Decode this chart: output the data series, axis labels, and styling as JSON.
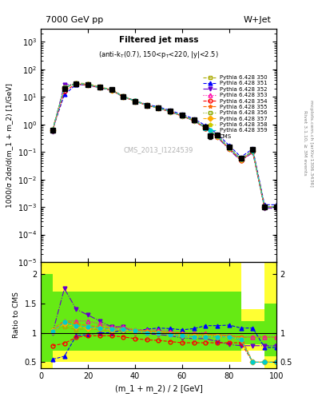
{
  "title_left": "7000 GeV pp",
  "title_right": "W+Jet",
  "plot_title": "Filtered jet mass",
  "plot_subtitle": "(anti-k_{T}(0.7), 150<p_{T}<220, |y|<2.5)",
  "watermark": "CMS_2013_I1224539",
  "rivet_label": "Rivet 3.1.10, ≥ 3M events",
  "mcplots_label": "mcplots.cern.ch [arXiv:1306.3436]",
  "xlabel": "(m_1 + m_2) / 2 [GeV]",
  "ylabel_main": "1000/σ 2dσ/d(m_1 + m_2) [1/GeV]",
  "ylabel_ratio": "Ratio to CMS",
  "xlim": [
    0,
    100
  ],
  "ylim_main": [
    1e-05,
    3000
  ],
  "ylim_ratio": [
    0.4,
    2.2
  ],
  "x_data": [
    5,
    10,
    15,
    20,
    25,
    30,
    35,
    40,
    45,
    50,
    55,
    60,
    65,
    70,
    75,
    80,
    85,
    90,
    95,
    100
  ],
  "cms_x": [
    5,
    10,
    15,
    20,
    25,
    30,
    35,
    40,
    45,
    50,
    55,
    60,
    65,
    70,
    75,
    80,
    85,
    90,
    95,
    100
  ],
  "cms_y": [
    0.6,
    20,
    30,
    28,
    22,
    18,
    10,
    7,
    5,
    4,
    3,
    2.2,
    1.5,
    0.8,
    0.4,
    0.15,
    0.06,
    0.12,
    0.001,
    0.001
  ],
  "cms_yerr": [
    0.1,
    2,
    3,
    2.5,
    2,
    1.5,
    0.8,
    0.6,
    0.4,
    0.3,
    0.25,
    0.18,
    0.12,
    0.07,
    0.04,
    0.015,
    0.008,
    0.02,
    0.0002,
    0.0002
  ],
  "series": [
    {
      "label": "Pythia 6.428 350",
      "color": "#aaaa00",
      "linestyle": "--",
      "marker": "s",
      "markerfacecolor": "none",
      "y": [
        0.65,
        22,
        32,
        30,
        23,
        18.5,
        10.5,
        7.2,
        5.1,
        4.0,
        3.0,
        2.1,
        1.45,
        0.78,
        0.38,
        0.14,
        0.055,
        0.11,
        0.001,
        0.001
      ],
      "ratio": [
        1.05,
        1.1,
        1.05,
        1.07,
        1.05,
        1.03,
        1.05,
        1.03,
        1.02,
        1.0,
        1.0,
        0.95,
        0.97,
        0.97,
        0.95,
        0.93,
        0.92,
        0.92,
        0.92,
        0.92
      ]
    },
    {
      "label": "Pythia 6.428 351",
      "color": "#0000ff",
      "linestyle": "--",
      "marker": "^",
      "markerfacecolor": "#0000ff",
      "y": [
        0.65,
        12,
        28,
        27,
        22,
        18,
        10.5,
        7.2,
        5.3,
        4.3,
        3.2,
        2.3,
        1.6,
        0.9,
        0.45,
        0.17,
        0.065,
        0.13,
        0.0012,
        0.0012
      ],
      "ratio": [
        0.55,
        0.6,
        0.95,
        0.97,
        1.0,
        1.0,
        1.05,
        1.03,
        1.06,
        1.08,
        1.07,
        1.05,
        1.07,
        1.12,
        1.12,
        1.13,
        1.08,
        1.08,
        0.75,
        0.75
      ]
    },
    {
      "label": "Pythia 6.428 352",
      "color": "#6600cc",
      "linestyle": "-.",
      "marker": "v",
      "markerfacecolor": "#6600cc",
      "y": [
        0.55,
        28,
        28,
        27,
        21,
        17,
        10,
        7.0,
        4.9,
        3.9,
        2.85,
        2.0,
        1.35,
        0.72,
        0.34,
        0.12,
        0.047,
        0.095,
        0.0009,
        0.0009
      ],
      "ratio": [
        1.0,
        1.75,
        1.4,
        1.3,
        1.2,
        1.1,
        1.1,
        1.0,
        0.98,
        0.97,
        0.95,
        0.91,
        0.9,
        0.9,
        0.85,
        0.8,
        0.78,
        0.78,
        0.78,
        0.78
      ]
    },
    {
      "label": "Pythia 6.428 353",
      "color": "#ff00aa",
      "linestyle": ":",
      "marker": "^",
      "markerfacecolor": "none",
      "y": [
        0.63,
        22,
        30,
        28,
        22,
        18,
        10.2,
        7.0,
        5.0,
        3.95,
        2.95,
        2.05,
        1.4,
        0.76,
        0.37,
        0.135,
        0.053,
        0.105,
        0.001,
        0.001
      ],
      "ratio": [
        1.05,
        1.2,
        1.2,
        1.2,
        1.15,
        1.1,
        1.1,
        1.05,
        1.05,
        1.05,
        1.02,
        1.0,
        1.0,
        1.0,
        0.97,
        0.95,
        0.93,
        0.93,
        0.93,
        0.93
      ]
    },
    {
      "label": "Pythia 6.428 354",
      "color": "#ff0000",
      "linestyle": "--",
      "marker": "o",
      "markerfacecolor": "none",
      "y": [
        0.6,
        16,
        29,
        27,
        22,
        17.5,
        10,
        6.9,
        4.9,
        3.85,
        2.85,
        2.0,
        1.35,
        0.72,
        0.35,
        0.13,
        0.05,
        0.1,
        0.001,
        0.001
      ],
      "ratio": [
        0.78,
        0.82,
        0.92,
        0.95,
        0.95,
        0.95,
        0.93,
        0.9,
        0.88,
        0.87,
        0.85,
        0.83,
        0.83,
        0.83,
        0.83,
        0.83,
        0.83,
        0.5,
        0.5,
        0.5
      ]
    },
    {
      "label": "Pythia 6.428 355",
      "color": "#ff6600",
      "linestyle": "--",
      "marker": "*",
      "markerfacecolor": "#ff6600",
      "y": [
        0.65,
        21,
        31,
        29,
        22,
        18,
        10.3,
        7.1,
        5.0,
        4.0,
        2.95,
        2.08,
        1.42,
        0.77,
        0.38,
        0.14,
        0.055,
        0.11,
        0.001,
        0.001
      ],
      "ratio": [
        1.05,
        1.2,
        1.15,
        1.12,
        1.1,
        1.08,
        1.07,
        1.05,
        1.03,
        1.02,
        1.0,
        1.0,
        0.98,
        0.98,
        0.97,
        0.95,
        0.93,
        0.5,
        0.5,
        0.5
      ]
    },
    {
      "label": "Pythia 6.428 356",
      "color": "#88aa00",
      "linestyle": ":",
      "marker": "s",
      "markerfacecolor": "none",
      "y": [
        0.63,
        21,
        30,
        28,
        22,
        17.8,
        10.2,
        7.0,
        5.0,
        3.95,
        2.92,
        2.05,
        1.38,
        0.75,
        0.37,
        0.135,
        0.053,
        0.105,
        0.001,
        0.001
      ],
      "ratio": [
        1.02,
        1.15,
        1.1,
        1.08,
        1.07,
        1.05,
        1.05,
        1.02,
        1.0,
        1.0,
        0.97,
        0.95,
        0.93,
        0.93,
        0.93,
        0.93,
        0.88,
        0.5,
        0.5,
        0.5
      ]
    },
    {
      "label": "Pythia 6.428 357",
      "color": "#ffaa00",
      "linestyle": "--",
      "marker": "D",
      "markerfacecolor": "#ffaa00",
      "y": [
        0.63,
        21,
        30,
        28,
        22,
        17.8,
        10.2,
        7.0,
        5.0,
        3.95,
        2.92,
        2.05,
        1.38,
        0.75,
        0.37,
        0.135,
        0.053,
        0.105,
        0.001,
        0.001
      ],
      "ratio": [
        1.02,
        1.15,
        1.1,
        1.08,
        1.07,
        1.05,
        1.05,
        1.02,
        1.0,
        1.0,
        0.97,
        0.95,
        0.93,
        0.93,
        0.93,
        0.93,
        0.88,
        0.5,
        0.5,
        0.5
      ]
    },
    {
      "label": "Pythia 6.428 358",
      "color": "#cccc00",
      "linestyle": ":",
      "marker": "p",
      "markerfacecolor": "#cccc00",
      "y": [
        0.65,
        22,
        31,
        29,
        22,
        18,
        10.3,
        7.1,
        5.0,
        4.0,
        2.95,
        2.08,
        1.42,
        0.77,
        0.38,
        0.14,
        0.055,
        0.11,
        0.001,
        0.001
      ],
      "ratio": [
        1.05,
        1.18,
        1.12,
        1.1,
        1.08,
        1.06,
        1.06,
        1.03,
        1.01,
        1.01,
        0.98,
        0.97,
        0.95,
        0.95,
        0.95,
        0.93,
        0.9,
        0.5,
        0.5,
        0.5
      ]
    },
    {
      "label": "Pythia 6.428 359",
      "color": "#00cccc",
      "linestyle": "--",
      "marker": "o",
      "markerfacecolor": "#00cccc",
      "y": [
        0.63,
        21.5,
        30.5,
        28.5,
        22,
        17.9,
        10.2,
        7.05,
        5.0,
        3.97,
        2.93,
        2.06,
        1.4,
        0.76,
        0.375,
        0.137,
        0.054,
        0.107,
        0.001,
        0.001
      ],
      "ratio": [
        1.02,
        1.18,
        1.12,
        1.1,
        1.08,
        1.06,
        1.06,
        1.03,
        1.0,
        1.0,
        0.97,
        0.95,
        0.93,
        0.93,
        0.93,
        0.93,
        0.88,
        0.5,
        0.5,
        0.5
      ]
    }
  ],
  "yellow_band_x": [
    0,
    5,
    5,
    20,
    20,
    85,
    85,
    95,
    95,
    100
  ],
  "yellow_band_low": [
    0.4,
    0.4,
    0.5,
    0.5,
    0.7,
    0.7,
    0.4,
    0.4,
    0.4,
    0.4
  ],
  "yellow_band_high": [
    2.2,
    2.2,
    2.5,
    2.5,
    1.4,
    1.4,
    2.5,
    2.5,
    2.2,
    2.2
  ],
  "green_band_x": [
    0,
    5,
    5,
    20,
    20,
    85,
    85,
    95,
    95,
    100
  ],
  "green_band_low": [
    0.5,
    0.5,
    0.7,
    0.7,
    0.8,
    0.8,
    0.6,
    0.6,
    0.5,
    0.5
  ],
  "green_band_high": [
    2.0,
    2.0,
    1.7,
    1.7,
    1.2,
    1.2,
    1.5,
    1.5,
    2.0,
    2.0
  ]
}
